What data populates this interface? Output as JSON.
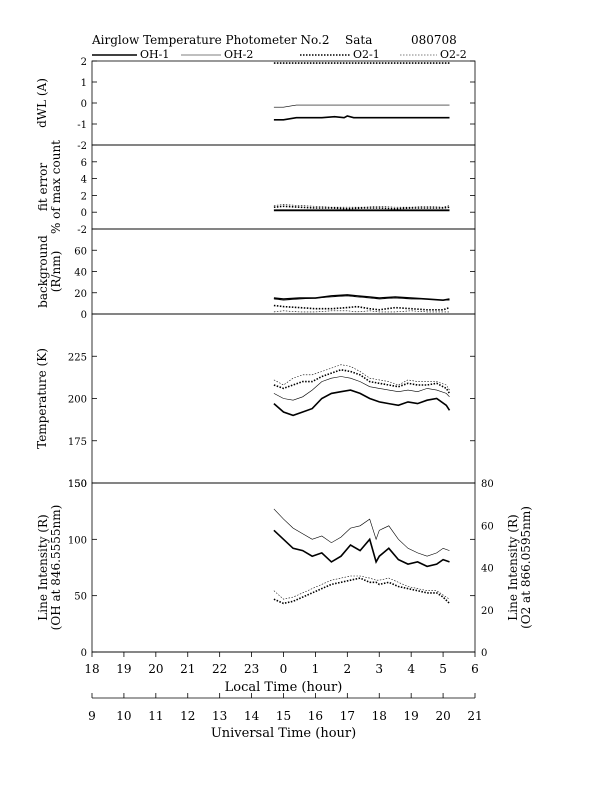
{
  "header": {
    "title": "Airglow Temperature Photometer No.2",
    "station": "Sata",
    "date": "080708"
  },
  "legend": [
    {
      "label": "OH-1",
      "style": "thick-solid"
    },
    {
      "label": "OH-2",
      "style": "thin-solid"
    },
    {
      "label": "O2-1",
      "style": "thick-dotted"
    },
    {
      "label": "O2-2",
      "style": "thin-dotted"
    }
  ],
  "chart_data": [
    {
      "type": "line",
      "ylabel": [
        "dWL (A)"
      ],
      "ylim": [
        -2,
        2
      ],
      "yticks": [
        "2",
        "1",
        "0",
        "-1",
        "-2"
      ],
      "x_local_hours": [
        23.7,
        24.0,
        24.4,
        24.8,
        25.2,
        25.6,
        25.9,
        26.0,
        26.2,
        26.6,
        27.0,
        27.5,
        28.0,
        28.5,
        29.0,
        29.2
      ],
      "series": [
        {
          "name": "OH-1",
          "values": [
            -0.8,
            -0.8,
            -0.7,
            -0.7,
            -0.7,
            -0.65,
            -0.7,
            -0.62,
            -0.7,
            -0.7,
            -0.7,
            -0.7,
            -0.7,
            -0.7,
            -0.7,
            -0.7
          ]
        },
        {
          "name": "OH-2",
          "values": [
            -0.2,
            -0.2,
            -0.1,
            -0.1,
            -0.1,
            -0.1,
            -0.1,
            -0.1,
            -0.1,
            -0.1,
            -0.1,
            -0.1,
            -0.1,
            -0.1,
            -0.1,
            -0.1
          ]
        },
        {
          "name": "O2-1",
          "values": [
            1.9,
            1.9,
            1.9,
            1.9,
            1.9,
            1.9,
            1.9,
            1.9,
            1.9,
            1.9,
            1.9,
            1.9,
            1.9,
            1.9,
            1.9,
            1.9
          ]
        },
        {
          "name": "O2-2",
          "values": [
            1.9,
            1.9,
            1.9,
            1.9,
            1.9,
            1.9,
            1.9,
            1.9,
            1.9,
            1.9,
            1.9,
            1.9,
            1.9,
            1.9,
            1.9,
            1.9
          ]
        }
      ]
    },
    {
      "type": "line",
      "ylabel": [
        "fit error",
        "% of max count"
      ],
      "ylim": [
        -2,
        8
      ],
      "yticks": [
        "6",
        "4",
        "2",
        "0",
        "-2"
      ],
      "x_local_hours": [
        23.7,
        24.0,
        24.5,
        25.0,
        25.5,
        26.0,
        26.5,
        27.0,
        27.5,
        28.0,
        28.5,
        29.0,
        29.2
      ],
      "series": [
        {
          "name": "OH-1",
          "values": [
            0.2,
            0.2,
            0.2,
            0.2,
            0.2,
            0.2,
            0.2,
            0.2,
            0.2,
            0.2,
            0.2,
            0.2,
            0.2
          ]
        },
        {
          "name": "OH-2",
          "values": [
            0.3,
            0.3,
            0.3,
            0.3,
            0.3,
            0.3,
            0.3,
            0.3,
            0.3,
            0.3,
            0.3,
            0.3,
            0.3
          ]
        },
        {
          "name": "O2-1",
          "values": [
            0.6,
            0.7,
            0.6,
            0.5,
            0.5,
            0.4,
            0.5,
            0.5,
            0.4,
            0.5,
            0.5,
            0.5,
            0.6
          ]
        },
        {
          "name": "O2-2",
          "values": [
            0.8,
            0.9,
            0.8,
            0.7,
            0.6,
            0.6,
            0.6,
            0.7,
            0.6,
            0.6,
            0.7,
            0.6,
            0.8
          ]
        }
      ]
    },
    {
      "type": "line",
      "ylabel": [
        "background",
        "(R/nm)"
      ],
      "ylim": [
        0,
        80
      ],
      "yticks": [
        "60",
        "40",
        "20",
        "0"
      ],
      "x_local_hours": [
        23.7,
        24.0,
        24.5,
        25.0,
        25.5,
        26.0,
        26.3,
        26.7,
        27.0,
        27.5,
        28.0,
        28.5,
        29.0,
        29.2
      ],
      "series": [
        {
          "name": "OH-1",
          "values": [
            15,
            14,
            15,
            15,
            17,
            18,
            17,
            16,
            15,
            16,
            15,
            14,
            13,
            14
          ]
        },
        {
          "name": "OH-2",
          "values": [
            14,
            13,
            14,
            15,
            16,
            17,
            16,
            15,
            14,
            15,
            14,
            14,
            13,
            13
          ]
        },
        {
          "name": "O2-1",
          "values": [
            8,
            7,
            6,
            5,
            5,
            6,
            7,
            5,
            4,
            6,
            5,
            4,
            4,
            6
          ]
        },
        {
          "name": "O2-2",
          "values": [
            2,
            3,
            2,
            2,
            3,
            3,
            2,
            3,
            2,
            2,
            3,
            2,
            2,
            2
          ]
        }
      ]
    },
    {
      "type": "line",
      "ylabel": [
        "Temperature (K)"
      ],
      "ylim": [
        150,
        250
      ],
      "yticks": [
        "225",
        "200",
        "175",
        "150"
      ],
      "x_local_hours": [
        23.7,
        24.0,
        24.3,
        24.6,
        24.9,
        25.2,
        25.5,
        25.8,
        26.1,
        26.4,
        26.7,
        27.0,
        27.3,
        27.6,
        27.9,
        28.2,
        28.5,
        28.8,
        29.1,
        29.2
      ],
      "series": [
        {
          "name": "OH-1",
          "values": [
            197,
            192,
            190,
            192,
            194,
            200,
            203,
            204,
            205,
            203,
            200,
            198,
            197,
            196,
            198,
            197,
            199,
            200,
            196,
            193
          ]
        },
        {
          "name": "OH-2",
          "values": [
            203,
            200,
            199,
            201,
            205,
            210,
            212,
            213,
            212,
            210,
            207,
            206,
            205,
            204,
            205,
            204,
            206,
            205,
            203,
            201
          ]
        },
        {
          "name": "O2-1",
          "values": [
            208,
            206,
            208,
            210,
            210,
            213,
            215,
            217,
            216,
            214,
            210,
            209,
            208,
            207,
            209,
            208,
            208,
            209,
            206,
            203
          ]
        },
        {
          "name": "O2-2",
          "values": [
            211,
            208,
            212,
            214,
            214,
            216,
            218,
            220,
            219,
            216,
            212,
            211,
            210,
            208,
            211,
            210,
            210,
            210,
            208,
            205
          ]
        }
      ]
    },
    {
      "type": "line",
      "ylabel": [
        "Line Intensity (R)",
        "(OH at 846.5555nm)"
      ],
      "ylabel_right": [
        "Line Intensity (R)",
        "(O2 at 866.0595nm)"
      ],
      "ylim": [
        0,
        150
      ],
      "ylim_right": [
        0,
        80
      ],
      "yticks": [
        "150",
        "100",
        "50",
        "0"
      ],
      "yticks_right": [
        "80",
        "60",
        "40",
        "20",
        "0"
      ],
      "x_local_hours": [
        23.7,
        24.0,
        24.3,
        24.6,
        24.9,
        25.2,
        25.5,
        25.8,
        26.1,
        26.4,
        26.7,
        26.9,
        27.0,
        27.3,
        27.6,
        27.9,
        28.2,
        28.5,
        28.8,
        29.0,
        29.2
      ],
      "series": [
        {
          "name": "OH-1",
          "values": [
            108,
            100,
            92,
            90,
            85,
            88,
            80,
            85,
            95,
            90,
            100,
            80,
            85,
            92,
            82,
            78,
            80,
            76,
            78,
            82,
            80
          ]
        },
        {
          "name": "OH-2",
          "values": [
            127,
            118,
            110,
            105,
            100,
            103,
            97,
            102,
            110,
            112,
            118,
            100,
            108,
            112,
            100,
            92,
            88,
            85,
            88,
            92,
            90
          ]
        },
        {
          "name": "O2-1",
          "values": [
            25,
            23,
            24,
            26,
            28,
            30,
            32,
            33,
            34,
            35,
            33,
            33,
            32,
            33,
            31,
            30,
            29,
            28,
            28,
            26,
            23
          ]
        },
        {
          "name": "O2-2",
          "values": [
            29,
            25,
            26,
            28,
            30,
            32,
            34,
            35,
            36,
            36,
            35,
            34,
            34,
            35,
            33,
            31,
            30,
            29,
            29,
            27,
            25
          ]
        }
      ]
    }
  ],
  "x_axes": {
    "local": {
      "label": "Local Time (hour)",
      "ticks": [
        "18",
        "19",
        "20",
        "21",
        "22",
        "23",
        "0",
        "1",
        "2",
        "3",
        "4",
        "5",
        "6"
      ]
    },
    "universal": {
      "label": "Universal Time (hour)",
      "ticks": [
        "9",
        "10",
        "11",
        "12",
        "13",
        "14",
        "15",
        "16",
        "17",
        "18",
        "19",
        "20",
        "21"
      ]
    }
  }
}
